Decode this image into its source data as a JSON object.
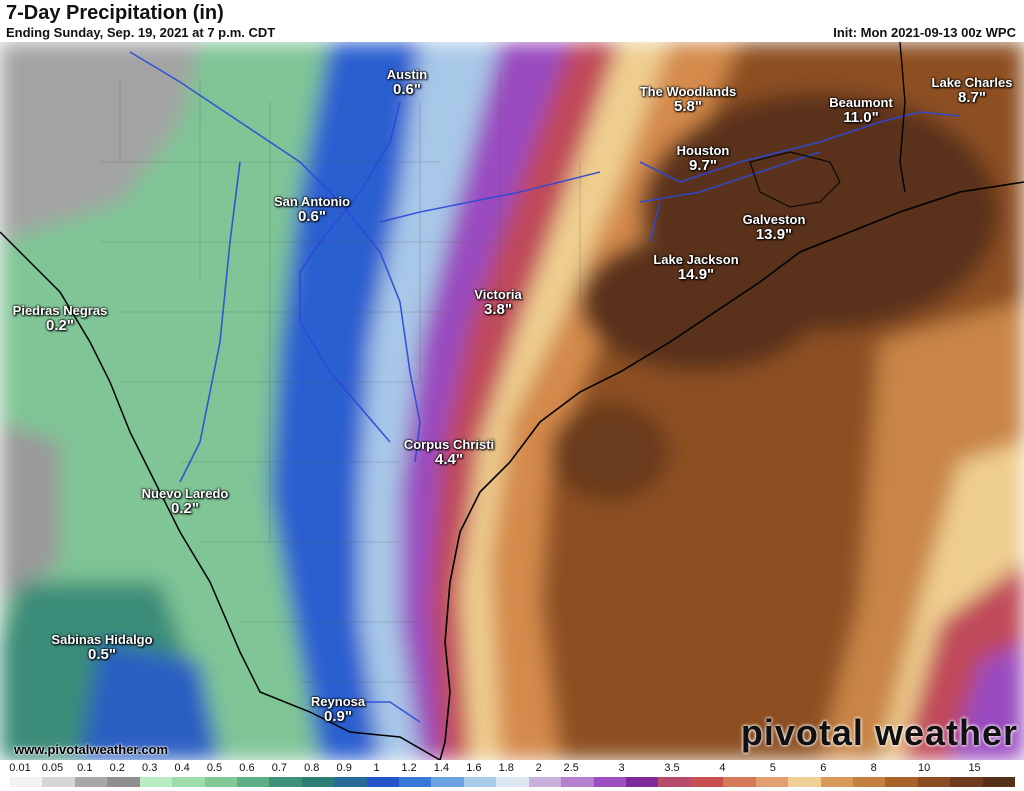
{
  "header": {
    "title": "7-Day Precipitation (in)",
    "subtitle": "Ending Sunday, Sep. 19, 2021 at 7 p.m. CDT",
    "init": "Init: Mon 2021-09-13 00z WPC"
  },
  "cities": [
    {
      "name": "Austin",
      "value": "0.6\""
    },
    {
      "name": "San Antonio",
      "value": "0.6\""
    },
    {
      "name": "The Woodlands",
      "value": "5.8\""
    },
    {
      "name": "Beaumont",
      "value": "11.0\""
    },
    {
      "name": "Lake Charles",
      "value": "8.7\""
    },
    {
      "name": "Houston",
      "value": "9.7\""
    },
    {
      "name": "Galveston",
      "value": "13.9\""
    },
    {
      "name": "Lake Jackson",
      "value": "14.9\""
    },
    {
      "name": "Victoria",
      "value": "3.8\""
    },
    {
      "name": "Piedras Negras",
      "value": "0.2\""
    },
    {
      "name": "Corpus Christi",
      "value": "4.4\""
    },
    {
      "name": "Nuevo Laredo",
      "value": "0.2\""
    },
    {
      "name": "Sabinas Hidalgo",
      "value": "0.5\""
    },
    {
      "name": "Reynosa",
      "value": "0.9\""
    }
  ],
  "footer": {
    "website": "www.pivotalweather.com",
    "brand": "pivotal weather"
  },
  "legend": {
    "labels": [
      "0.01",
      "0.05",
      "0.1",
      "0.2",
      "0.3",
      "0.4",
      "0.5",
      "0.6",
      "0.7",
      "0.8",
      "0.9",
      "1",
      "1.2",
      "1.4",
      "1.6",
      "1.8",
      "2",
      "2.5",
      "3",
      "3.5",
      "4",
      "5",
      "6",
      "8",
      "10",
      "15"
    ],
    "colors": [
      "#f2f2f2",
      "#d6d6d6",
      "#a8a8a8",
      "#8f8f8f",
      "#b9ecc2",
      "#9fdcac",
      "#80c997",
      "#5fae86",
      "#3f9279",
      "#2e7d74",
      "#2a6a9a",
      "#2456c9",
      "#3a78d8",
      "#6aa2e0",
      "#a8cde8",
      "#dde9f2",
      "#c9b0dc",
      "#b57fd0",
      "#9c4fc0",
      "#7e2a98",
      "#b84a6a",
      "#c85050",
      "#d47a5a",
      "#e2a070",
      "#efcf95",
      "#d89a5a",
      "#c4803e",
      "#a86428",
      "#8a4e22",
      "#6e3c1c",
      "#57301a"
    ]
  }
}
